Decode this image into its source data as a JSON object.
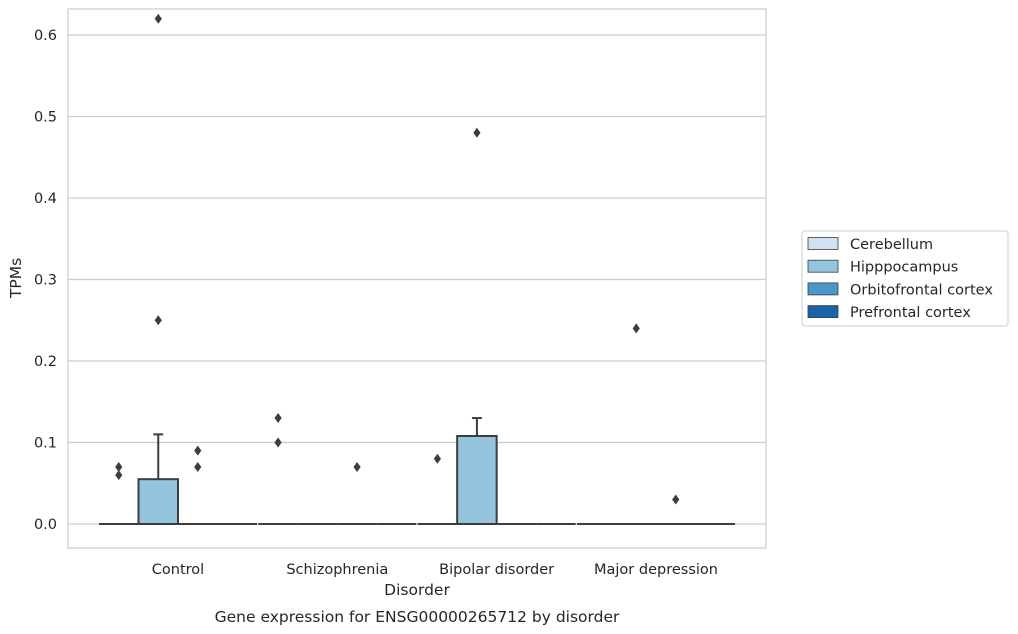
{
  "chart_data": {
    "type": "box",
    "title": "",
    "caption": "Gene expression for ENSG00000265712 by disorder",
    "xlabel": "Disorder",
    "ylabel": "TPMs",
    "ylim": [
      -0.03,
      0.65
    ],
    "yticks": [
      "0.0",
      "0.1",
      "0.2",
      "0.3",
      "0.4",
      "0.5",
      "0.6"
    ],
    "ytick_values": [
      0.0,
      0.1,
      0.2,
      0.3,
      0.4,
      0.5,
      0.6
    ],
    "categories": [
      "Control",
      "Schizophrenia",
      "Bipolar disorder",
      "Major depression"
    ],
    "grid": true,
    "legend_position": "right",
    "series": [
      {
        "name": "Cerebellum",
        "color": "#d0e1f2",
        "boxes": [
          {
            "q1": 0,
            "median": 0,
            "q3": 0,
            "whisker_low": 0,
            "whisker_high": 0,
            "outliers": [
              0.07,
              0.06
            ]
          },
          {
            "q1": 0,
            "median": 0,
            "q3": 0,
            "whisker_low": 0,
            "whisker_high": 0,
            "outliers": [
              0.13,
              0.1
            ]
          },
          {
            "q1": 0,
            "median": 0,
            "q3": 0,
            "whisker_low": 0,
            "whisker_high": 0,
            "outliers": [
              0.08
            ]
          },
          {
            "q1": 0,
            "median": 0,
            "q3": 0,
            "whisker_low": 0,
            "whisker_high": 0,
            "outliers": []
          }
        ]
      },
      {
        "name": "Hipppocampus",
        "color": "#94c4df",
        "boxes": [
          {
            "q1": 0,
            "median": 0,
            "q3": 0.055,
            "whisker_low": 0,
            "whisker_high": 0.11,
            "outliers": [
              0.62,
              0.25
            ]
          },
          {
            "q1": 0,
            "median": 0,
            "q3": 0,
            "whisker_low": 0,
            "whisker_high": 0,
            "outliers": []
          },
          {
            "q1": 0,
            "median": 0,
            "q3": 0.108,
            "whisker_low": 0,
            "whisker_high": 0.13,
            "outliers": [
              0.48
            ]
          },
          {
            "q1": 0,
            "median": 0,
            "q3": 0,
            "whisker_low": 0,
            "whisker_high": 0,
            "outliers": [
              0.24
            ]
          }
        ]
      },
      {
        "name": "Orbitofrontal cortex",
        "color": "#4a98c9",
        "boxes": [
          {
            "q1": 0,
            "median": 0,
            "q3": 0,
            "whisker_low": 0,
            "whisker_high": 0,
            "outliers": [
              0.09,
              0.07
            ]
          },
          {
            "q1": 0,
            "median": 0,
            "q3": 0,
            "whisker_low": 0,
            "whisker_high": 0,
            "outliers": [
              0.07
            ]
          },
          {
            "q1": 0,
            "median": 0,
            "q3": 0,
            "whisker_low": 0,
            "whisker_high": 0,
            "outliers": []
          },
          {
            "q1": 0,
            "median": 0,
            "q3": 0,
            "whisker_low": 0,
            "whisker_high": 0,
            "outliers": [
              0.03
            ]
          }
        ]
      },
      {
        "name": "Prefrontal cortex",
        "color": "#1764ab",
        "boxes": [
          {
            "q1": 0,
            "median": 0,
            "q3": 0,
            "whisker_low": 0,
            "whisker_high": 0,
            "outliers": []
          },
          {
            "q1": 0,
            "median": 0,
            "q3": 0,
            "whisker_low": 0,
            "whisker_high": 0,
            "outliers": []
          },
          {
            "q1": 0,
            "median": 0,
            "q3": 0,
            "whisker_low": 0,
            "whisker_high": 0,
            "outliers": []
          },
          {
            "q1": 0,
            "median": 0,
            "q3": 0,
            "whisker_low": 0,
            "whisker_high": 0,
            "outliers": []
          }
        ]
      }
    ]
  },
  "style": {
    "line_color": "#3d3d3d",
    "grid_color": "#cccccc",
    "frame_color": "#cccccc"
  }
}
